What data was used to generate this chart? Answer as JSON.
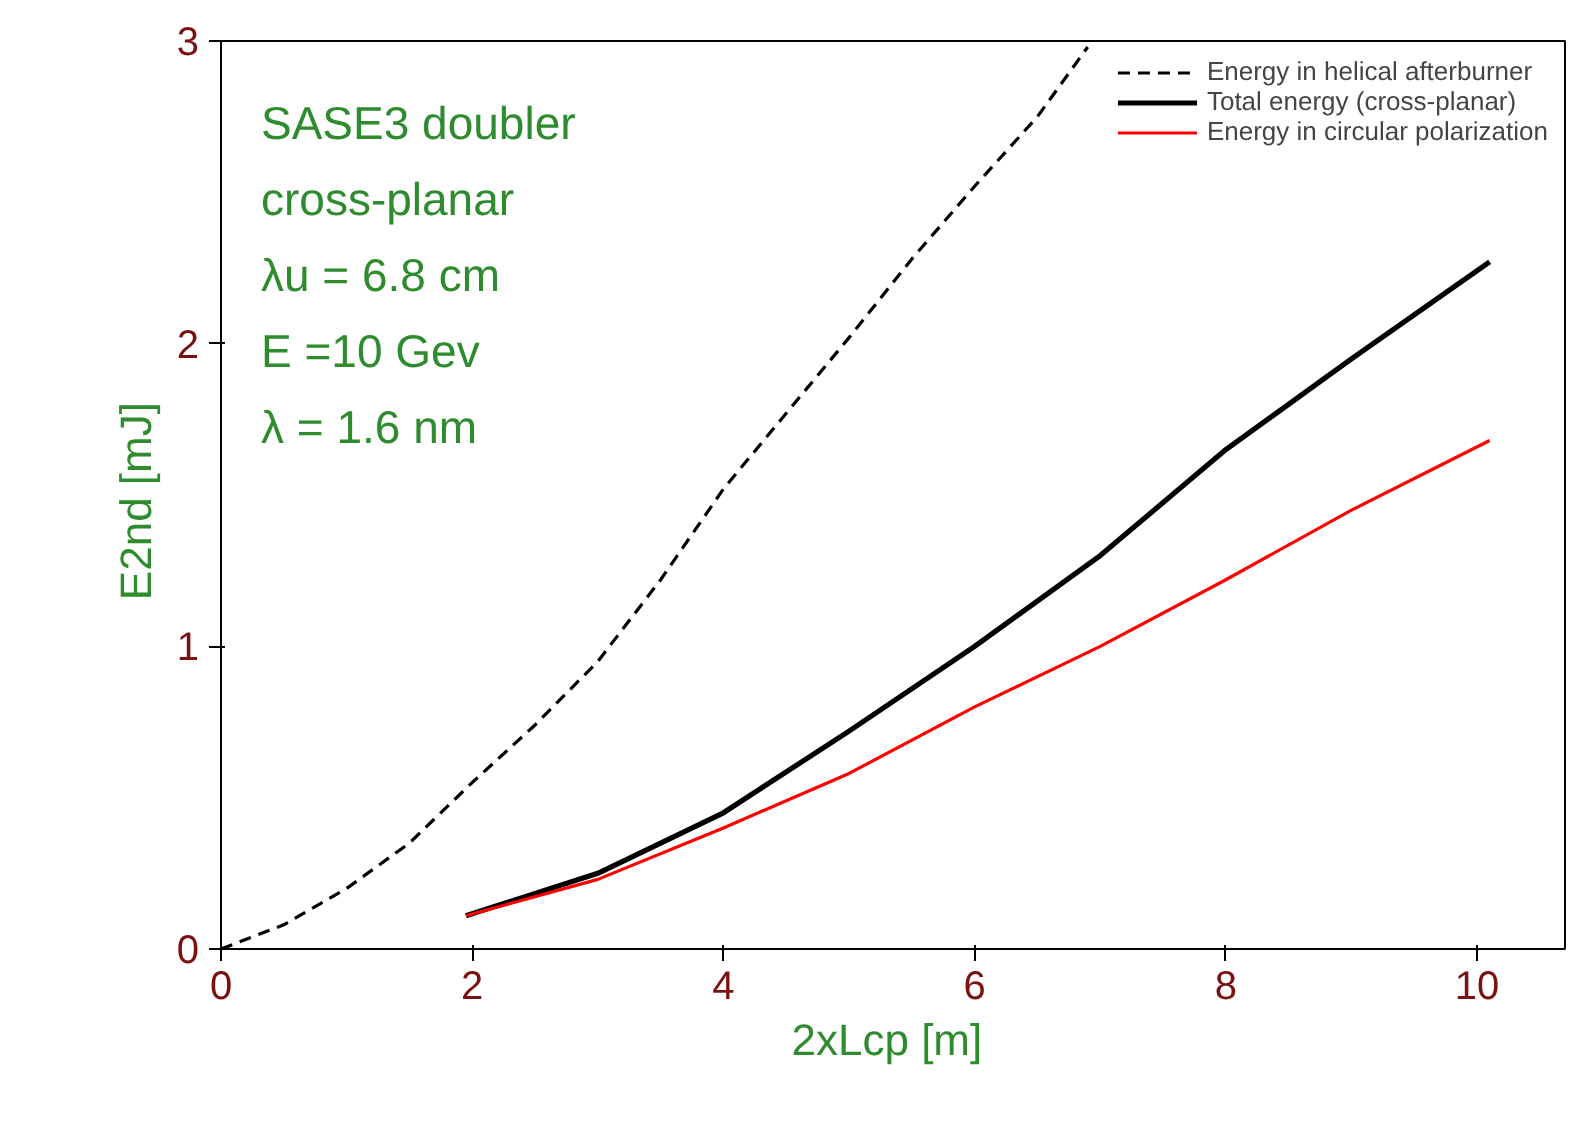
{
  "chart_data": {
    "type": "line",
    "xlabel": "2xLcp  [m]",
    "ylabel": "E2nd  [mJ]",
    "xlim": [
      0,
      10.7
    ],
    "ylim": [
      0,
      3
    ],
    "xticks": [
      0,
      2,
      4,
      6,
      8,
      10
    ],
    "yticks": [
      0,
      1,
      2,
      3
    ],
    "grid": false,
    "legend": "top right",
    "marker": "none",
    "annotations": [
      "SASE3 doubler",
      "cross-planar",
      "λu = 6.8 cm",
      "E =10 Gev",
      "λ = 1.6 nm"
    ],
    "series": [
      {
        "name": "Energy in helical afterburner",
        "color": "#000000",
        "line_style": "dashed",
        "x": [
          0,
          0.5,
          1,
          1.5,
          2,
          2.5,
          3,
          3.5,
          4,
          4.5,
          5,
          5.5,
          6,
          6.5,
          6.9
        ],
        "values": [
          0,
          0.08,
          0.2,
          0.35,
          0.55,
          0.74,
          0.95,
          1.22,
          1.52,
          1.77,
          2.02,
          2.28,
          2.52,
          2.75,
          2.98
        ]
      },
      {
        "name": "Total energy (cross-planar)",
        "color": "#000000",
        "line_style": "solid",
        "x": [
          1.95,
          3,
          4,
          5,
          6,
          7,
          8,
          9,
          10.1
        ],
        "values": [
          0.11,
          0.25,
          0.45,
          0.72,
          1.0,
          1.3,
          1.65,
          1.95,
          2.27
        ]
      },
      {
        "name": "Energy in circular polarization",
        "color": "#ff0000",
        "line_style": "solid",
        "x": [
          1.95,
          3,
          4,
          5,
          6,
          7,
          8,
          9,
          10.1
        ],
        "values": [
          0.11,
          0.23,
          0.4,
          0.58,
          0.8,
          1.0,
          1.22,
          1.45,
          1.68
        ]
      }
    ]
  }
}
